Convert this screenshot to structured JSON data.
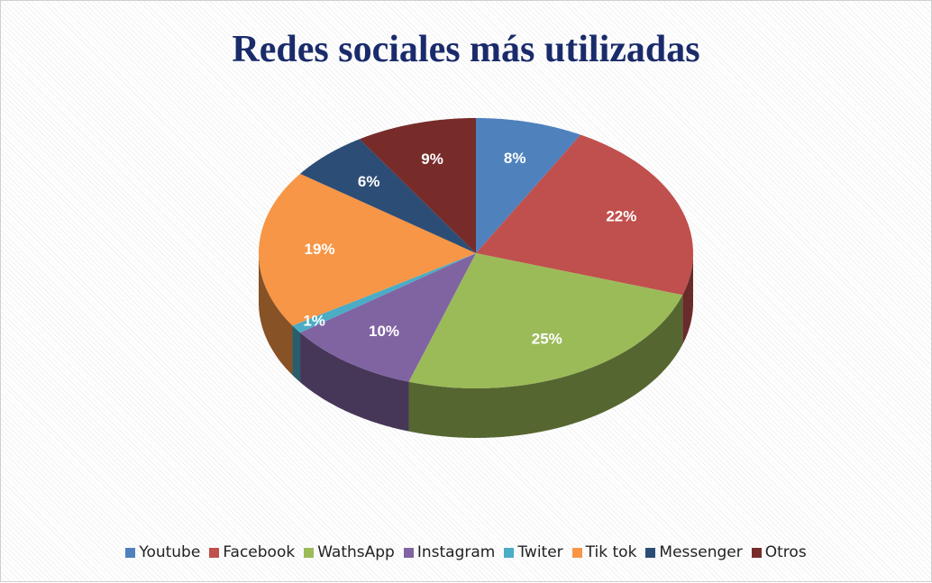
{
  "chart_data": {
    "type": "pie",
    "title": "Redes sociales más utilizadas",
    "categories": [
      "Youtube",
      "Facebook",
      "WathsApp",
      "Instagram",
      "Twiter",
      "Tik tok",
      "Messenger",
      "Otros"
    ],
    "values": [
      8,
      22,
      25,
      10,
      1,
      19,
      6,
      9
    ],
    "value_labels": [
      "8%",
      "22%",
      "25%",
      "10%",
      "1%",
      "19%",
      "6%",
      "9%"
    ],
    "colors": [
      "#4f81bd",
      "#c0504d",
      "#9bbb59",
      "#8064a2",
      "#4bacc6",
      "#f79646",
      "#2c4d75",
      "#772c2a"
    ],
    "legend": "bottom"
  }
}
